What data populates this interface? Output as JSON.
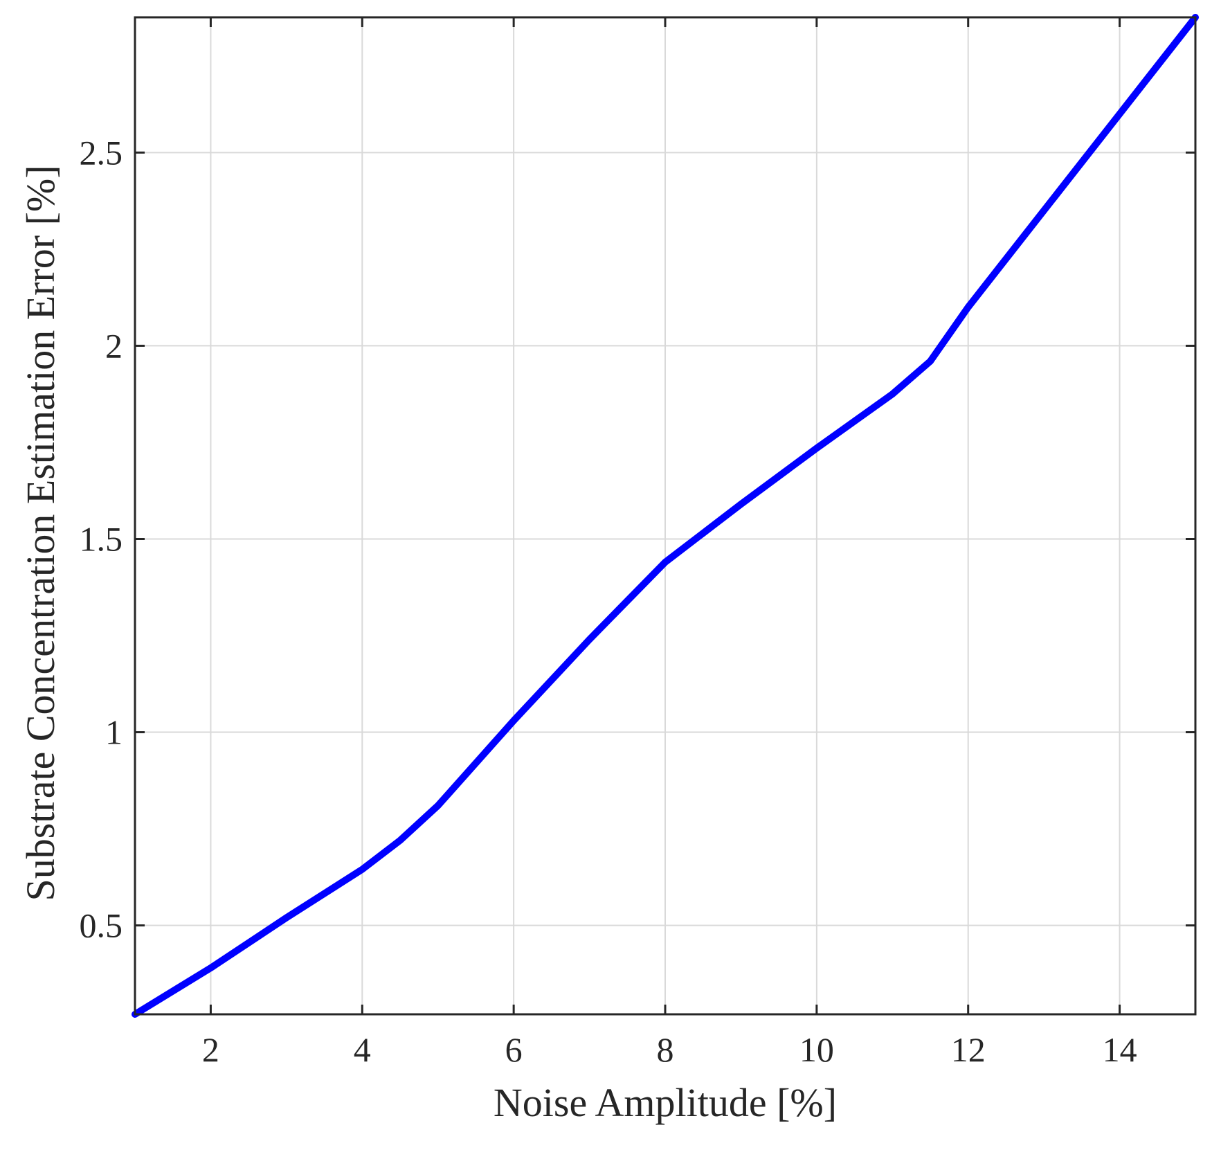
{
  "chart_data": {
    "type": "line",
    "title": "",
    "xlabel": "Noise Amplitude [%]",
    "ylabel": "Substrate Concentration Estimation Error [%]",
    "xlim": [
      1,
      15
    ],
    "ylim": [
      0.27,
      2.85
    ],
    "xticks": [
      2,
      4,
      6,
      8,
      10,
      12,
      14
    ],
    "yticks": [
      0.5,
      1,
      1.5,
      2,
      2.5
    ],
    "xtick_labels": [
      "2",
      "4",
      "6",
      "8",
      "10",
      "12",
      "14"
    ],
    "ytick_labels": [
      "0.5",
      "1",
      "1.5",
      "2",
      "2.5"
    ],
    "grid": true,
    "series": [
      {
        "color": "#0000ff",
        "x": [
          1,
          2,
          3,
          4,
          4.5,
          5,
          6,
          7,
          8,
          9,
          10,
          11,
          11.5,
          12,
          13,
          14,
          15
        ],
        "y": [
          0.27,
          0.39,
          0.52,
          0.645,
          0.72,
          0.81,
          1.03,
          1.24,
          1.44,
          1.59,
          1.735,
          1.875,
          1.96,
          2.1,
          2.35,
          2.6,
          2.85
        ]
      }
    ]
  }
}
